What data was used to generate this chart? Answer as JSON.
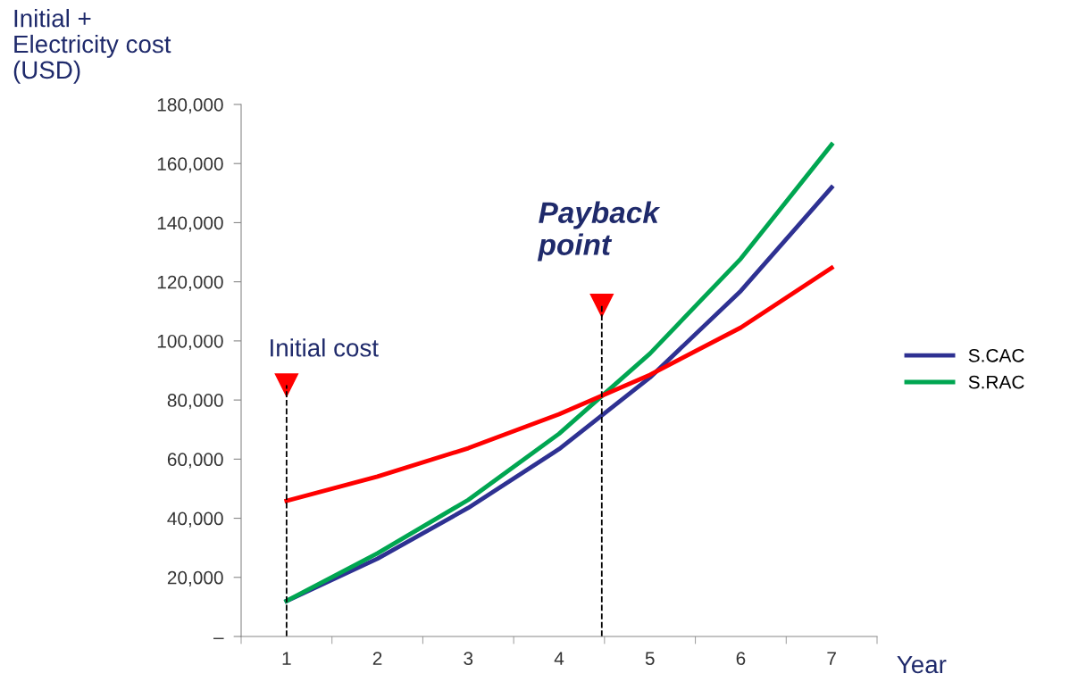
{
  "chart_data": {
    "type": "line",
    "xlabel": "Year",
    "ylabel": "Initial +\nElectricity cost\n(USD)",
    "x": [
      1,
      2,
      3,
      4,
      5,
      6,
      7
    ],
    "xlim": [
      0.5,
      7.5
    ],
    "xticks": [
      1,
      2,
      3,
      4,
      5,
      6,
      7,
      {
        "value": 0.5,
        "label": null
      },
      {
        "value": 1.5,
        "label": null
      },
      {
        "value": 2.5,
        "label": null
      },
      {
        "value": 3.5,
        "label": null
      },
      {
        "value": 4.5,
        "label": null
      },
      {
        "value": 5.5,
        "label": null
      },
      {
        "value": 6.5,
        "label": null
      },
      {
        "value": 7.5,
        "label": null
      }
    ],
    "ylim": [
      0,
      180000
    ],
    "yticks": [
      {
        "value": 0,
        "label": "–"
      },
      {
        "value": 20000,
        "label": "20,000"
      },
      {
        "value": 40000,
        "label": "40,000"
      },
      {
        "value": 60000,
        "label": "60,000"
      },
      {
        "value": 80000,
        "label": "80,000"
      },
      {
        "value": 100000,
        "label": "100,000"
      },
      {
        "value": 120000,
        "label": "120,000"
      },
      {
        "value": 140000,
        "label": "140,000"
      },
      {
        "value": 160000,
        "label": "160,000"
      },
      {
        "value": 180000,
        "label": "180,000"
      }
    ],
    "series": [
      {
        "name": "S.CAC",
        "color": "#2e3192",
        "values": [
          12000,
          26300,
          43500,
          63400,
          87600,
          116900,
          151900
        ]
      },
      {
        "name": "S.RAC",
        "color": "#00a651",
        "values": [
          12000,
          28100,
          46200,
          68600,
          95700,
          127800,
          166400
        ]
      },
      {
        "color": "#ff0000",
        "values": [
          45900,
          54100,
          63700,
          75200,
          88500,
          104500,
          124700
        ]
      }
    ],
    "annotations": [
      {
        "text": "Initial cost",
        "x": 1,
        "y": 85000
      },
      {
        "text": "Payback point",
        "x": 4.47,
        "y": 112000
      }
    ],
    "ref_lines": [
      {
        "axis": "x",
        "value": 1,
        "color": "#000000",
        "line_style": "dashed"
      },
      {
        "axis": "x",
        "value": 4.47,
        "color": "#000000",
        "line_style": "dashed"
      }
    ],
    "legend": "right",
    "grid": false,
    "marker": "none",
    "line_style": "solid"
  }
}
